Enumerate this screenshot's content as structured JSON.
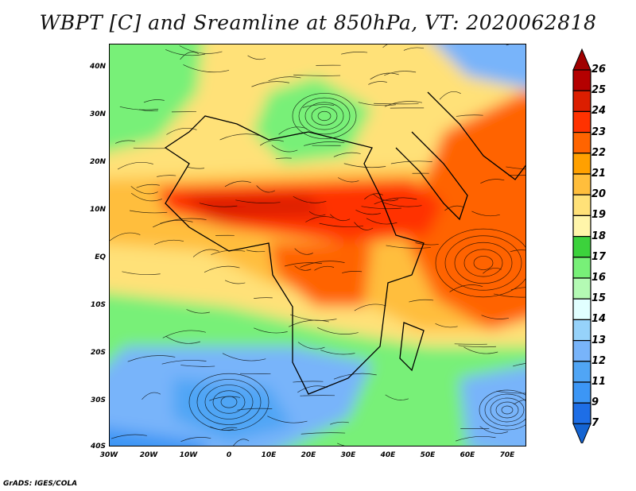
{
  "title": "WBPT [C] and Sreamline at 850hPa, VT: 2020062818",
  "lat_labels": [
    "40N",
    "30N",
    "20N",
    "10N",
    "EQ",
    "10S",
    "20S",
    "30S",
    "40S"
  ],
  "lon_labels": [
    "30W",
    "20W",
    "10W",
    "0",
    "10E",
    "20E",
    "30E",
    "40E",
    "50E",
    "60E",
    "70E"
  ],
  "colorbar": {
    "labels": [
      "26",
      "25",
      "24",
      "23",
      "22",
      "21",
      "20",
      "19",
      "18",
      "17",
      "16",
      "15",
      "14",
      "13",
      "12",
      "11",
      "9",
      "7"
    ],
    "top_arrow_color": "#a00000",
    "bottom_arrow_color": "#1464d2",
    "colors": [
      "#b40000",
      "#dc1e00",
      "#ff3200",
      "#ff6400",
      "#ffa000",
      "#ffbe3c",
      "#ffe178",
      "#fff5aa",
      "#3cd23c",
      "#78f078",
      "#b4fab4",
      "#e1ffff",
      "#96d2fa",
      "#78b4fa",
      "#50a5f5",
      "#3c96f5",
      "#1e6ee6"
    ]
  },
  "credit": "GrADS: IGES/COLA"
}
